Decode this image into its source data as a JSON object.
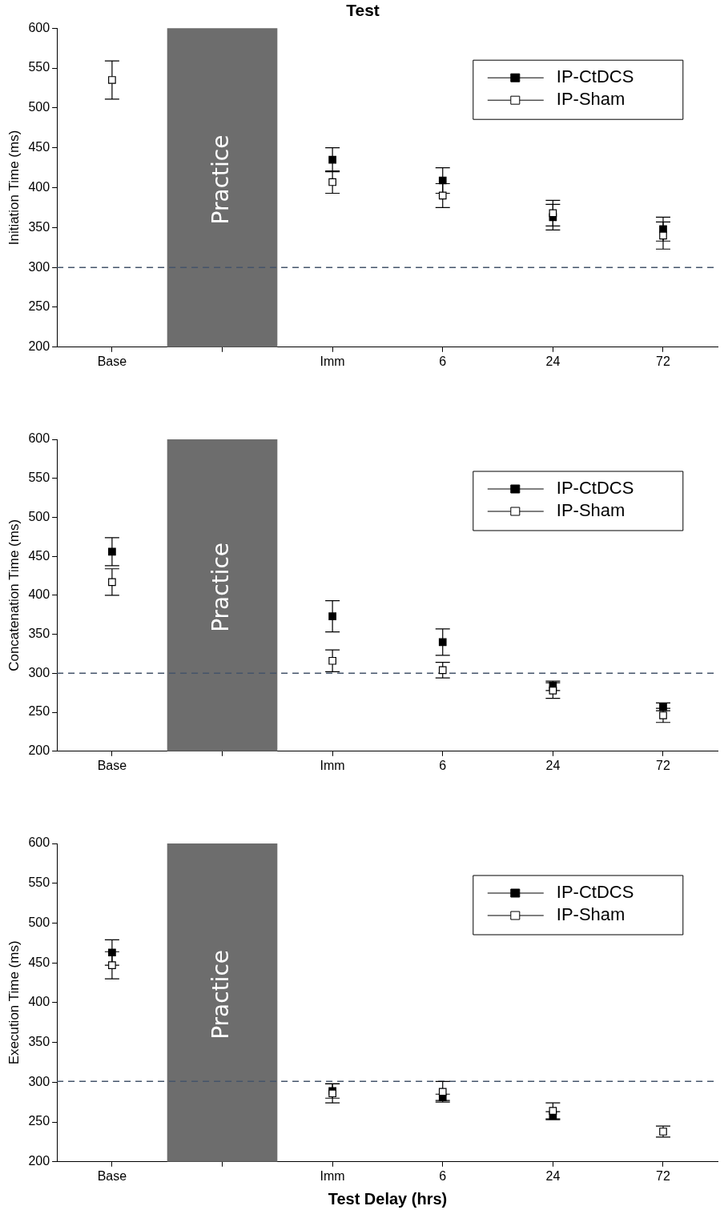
{
  "chart_data": [
    {
      "type": "scatter",
      "title": "Test",
      "ylabel": "Initiation Time (ms)",
      "categories": [
        "Base",
        null,
        "Imm",
        "6",
        "24",
        "72"
      ],
      "ylim": [
        200,
        600
      ],
      "yticks": [
        200,
        250,
        300,
        350,
        400,
        450,
        500,
        550,
        600
      ],
      "grid": false,
      "legend": "top right",
      "marker": "square",
      "series": [
        {
          "name": "IP-CtDCS",
          "color": "#000000",
          "values": [
            null,
            null,
            435,
            409,
            363,
            348
          ],
          "errors": [
            null,
            null,
            15,
            16,
            16,
            15
          ]
        },
        {
          "name": "IP-Sham",
          "color": "#ffffff",
          "values": [
            535,
            null,
            407,
            390,
            368,
            340
          ],
          "errors": [
            24,
            null,
            14,
            15,
            16,
            17
          ]
        }
      ],
      "ref_lines": [
        {
          "axis": "y",
          "value": 300,
          "color": "#44546a",
          "line_style": "dashed"
        }
      ],
      "bands": [
        {
          "axis": "x",
          "from": "Base",
          "to": "Imm",
          "label": "Practice",
          "color": "#6d6d6d"
        }
      ]
    },
    {
      "type": "scatter",
      "ylabel": "Concatenation Time (ms)",
      "categories": [
        "Base",
        null,
        "Imm",
        "6",
        "24",
        "72"
      ],
      "ylim": [
        200,
        600
      ],
      "yticks": [
        200,
        250,
        300,
        350,
        400,
        450,
        500,
        550,
        600
      ],
      "grid": false,
      "legend": "top right",
      "marker": "square",
      "series": [
        {
          "name": "IP-CtDCS",
          "color": "#000000",
          "values": [
            456,
            null,
            373,
            340,
            284,
            257
          ],
          "errors": [
            18,
            null,
            20,
            17,
            6,
            5
          ]
        },
        {
          "name": "IP-Sham",
          "color": "#ffffff",
          "values": [
            417,
            null,
            316,
            304,
            278,
            246
          ],
          "errors": [
            17,
            null,
            14,
            10,
            10,
            9
          ]
        }
      ],
      "ref_lines": [
        {
          "axis": "y",
          "value": 300,
          "color": "#44546a",
          "line_style": "dashed"
        }
      ],
      "bands": [
        {
          "axis": "x",
          "from": "Base",
          "to": "Imm",
          "label": "Practice",
          "color": "#6d6d6d"
        }
      ]
    },
    {
      "type": "scatter",
      "xlabel": "Test Delay (hrs)",
      "ylabel": "Execution Time (ms)",
      "categories": [
        "Base",
        null,
        "Imm",
        "6",
        "24",
        "72"
      ],
      "ylim": [
        200,
        600
      ],
      "yticks": [
        200,
        250,
        300,
        350,
        400,
        450,
        500,
        550,
        600
      ],
      "grid": false,
      "legend": "top right",
      "marker": "square",
      "series": [
        {
          "name": "IP-CtDCS",
          "color": "#000000",
          "values": [
            463,
            null,
            289,
            281,
            258,
            null
          ],
          "errors": [
            16,
            null,
            9,
            4,
            5,
            null
          ]
        },
        {
          "name": "IP-Sham",
          "color": "#ffffff",
          "values": [
            447,
            null,
            286,
            288,
            264,
            238
          ],
          "errors": [
            17,
            null,
            12,
            13,
            10,
            7
          ]
        }
      ],
      "ref_lines": [
        {
          "axis": "y",
          "value": 301,
          "color": "#44546a",
          "line_style": "dashed"
        }
      ],
      "bands": [
        {
          "axis": "x",
          "from": "Base",
          "to": "Imm",
          "label": "Practice",
          "color": "#6d6d6d"
        }
      ]
    }
  ]
}
